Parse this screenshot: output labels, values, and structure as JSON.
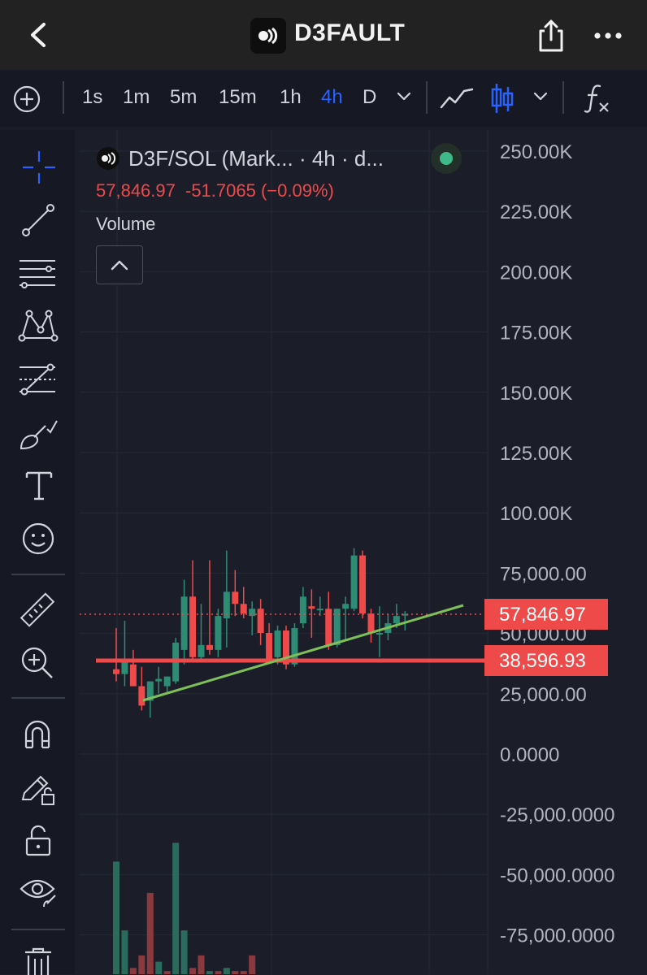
{
  "app": {
    "title": "D3FAULT"
  },
  "timeframes": [
    {
      "label": "1s",
      "active": false
    },
    {
      "label": "1m",
      "active": false
    },
    {
      "label": "5m",
      "active": false
    },
    {
      "label": "15m",
      "active": false
    },
    {
      "label": "1h",
      "active": false
    },
    {
      "label": "4h",
      "active": true
    },
    {
      "label": "D",
      "active": false
    }
  ],
  "legend": {
    "symbol": "D3F/SOL (Mark... · 4h · d...",
    "price": "57,846.97",
    "change": "-51.7065 (−0.09%)",
    "volume_label": "Volume"
  },
  "colors": {
    "up": "#2e8b74",
    "down": "#ef4a4a",
    "accent": "#2962ff",
    "trend": "#7fbf5a"
  },
  "chart_data": {
    "type": "candlestick",
    "interval": "4h",
    "y_ticks": [
      "250.00K",
      "225.00K",
      "200.00K",
      "175.00K",
      "150.00K",
      "125.00K",
      "100.00K",
      "75,000.00",
      "50,000.00",
      "25,000.00",
      "0.0000",
      "-25,000.0000",
      "-50,000.0000",
      "-75,000.0000"
    ],
    "last_price": 57846.97,
    "last_price_label": "57,846.97",
    "horizontal_line": 38596.93,
    "horizontal_line_label": "38,596.93",
    "candles": [
      {
        "o": 35000,
        "h": 52000,
        "l": 30000,
        "c": 33000
      },
      {
        "o": 33000,
        "h": 55000,
        "l": 28000,
        "c": 38000
      },
      {
        "o": 37000,
        "h": 43000,
        "l": 28000,
        "c": 28000
      },
      {
        "o": 28000,
        "h": 36000,
        "l": 18000,
        "c": 20000
      },
      {
        "o": 22000,
        "h": 30000,
        "l": 15000,
        "c": 30000
      },
      {
        "o": 30000,
        "h": 36000,
        "l": 25000,
        "c": 31000
      },
      {
        "o": 28000,
        "h": 32000,
        "l": 25000,
        "c": 32000
      },
      {
        "o": 30000,
        "h": 48000,
        "l": 29000,
        "c": 46000
      },
      {
        "o": 43000,
        "h": 72000,
        "l": 37000,
        "c": 65000
      },
      {
        "o": 65000,
        "h": 80000,
        "l": 39000,
        "c": 40000
      },
      {
        "o": 40000,
        "h": 62000,
        "l": 38000,
        "c": 45000
      },
      {
        "o": 45000,
        "h": 80000,
        "l": 41000,
        "c": 43000
      },
      {
        "o": 43000,
        "h": 60000,
        "l": 40000,
        "c": 57000
      },
      {
        "o": 56000,
        "h": 84000,
        "l": 44000,
        "c": 67000
      },
      {
        "o": 67000,
        "h": 76000,
        "l": 57000,
        "c": 62000
      },
      {
        "o": 62000,
        "h": 69000,
        "l": 56000,
        "c": 58000
      },
      {
        "o": 57000,
        "h": 63000,
        "l": 49000,
        "c": 60000
      },
      {
        "o": 60000,
        "h": 64000,
        "l": 45000,
        "c": 50000
      },
      {
        "o": 50000,
        "h": 54000,
        "l": 39000,
        "c": 39000
      },
      {
        "o": 40000,
        "h": 53000,
        "l": 37000,
        "c": 51000
      },
      {
        "o": 51000,
        "h": 53000,
        "l": 35000,
        "c": 37000
      },
      {
        "o": 37000,
        "h": 54000,
        "l": 36000,
        "c": 52000
      },
      {
        "o": 54000,
        "h": 69000,
        "l": 52000,
        "c": 65000
      },
      {
        "o": 61000,
        "h": 68000,
        "l": 48000,
        "c": 60000
      },
      {
        "o": 60000,
        "h": 65000,
        "l": 57000,
        "c": 60000
      },
      {
        "o": 60000,
        "h": 67000,
        "l": 43000,
        "c": 45000
      },
      {
        "o": 45000,
        "h": 60000,
        "l": 44000,
        "c": 60000
      },
      {
        "o": 60000,
        "h": 65000,
        "l": 47000,
        "c": 62000
      },
      {
        "o": 60000,
        "h": 85000,
        "l": 59000,
        "c": 82000
      },
      {
        "o": 82000,
        "h": 84000,
        "l": 56000,
        "c": 58000
      },
      {
        "o": 58000,
        "h": 60000,
        "l": 46000,
        "c": 50000
      },
      {
        "o": 50000,
        "h": 61000,
        "l": 40000,
        "c": 50000
      },
      {
        "o": 50000,
        "h": 58000,
        "l": 47000,
        "c": 54000
      },
      {
        "o": 54000,
        "h": 62000,
        "l": 52000,
        "c": 57000
      },
      {
        "o": 57800,
        "h": 59000,
        "l": 51000,
        "c": 57846
      }
    ],
    "volume_bars": [
      {
        "v": 180,
        "up": true
      },
      {
        "v": 70,
        "up": true
      },
      {
        "v": 10,
        "up": false
      },
      {
        "v": 30,
        "up": false
      },
      {
        "v": 130,
        "up": false
      },
      {
        "v": 20,
        "up": true
      },
      {
        "v": 5,
        "up": false
      },
      {
        "v": 210,
        "up": true
      },
      {
        "v": 70,
        "up": true
      },
      {
        "v": 10,
        "up": false
      },
      {
        "v": 30,
        "up": false
      },
      {
        "v": 5,
        "up": true
      },
      {
        "v": 5,
        "up": false
      },
      {
        "v": 10,
        "up": true
      },
      {
        "v": 5,
        "up": false
      },
      {
        "v": 5,
        "up": false
      },
      {
        "v": 30,
        "up": false
      }
    ]
  }
}
